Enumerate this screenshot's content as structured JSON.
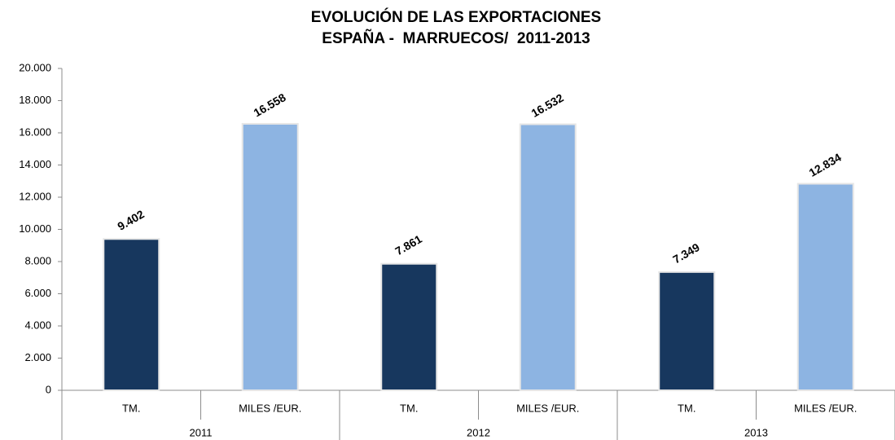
{
  "chart_data": {
    "type": "bar",
    "title": "EVOLUCIÓN DE LAS EXPORTACIONES",
    "subtitle": "ESPAÑA -  MARRUECOS/  2011-2013",
    "categories": [
      "TM.",
      "MILES /EUR.",
      "TM.",
      "MILES /EUR.",
      "TM.",
      "MILES /EUR."
    ],
    "groups": [
      "2011",
      "2012",
      "2013"
    ],
    "values": [
      9402,
      16558,
      7861,
      16532,
      7349,
      12834
    ],
    "value_labels": [
      "9.402",
      "16.558",
      "7.861",
      "16.532",
      "7.349",
      "12.834"
    ],
    "colors": [
      "#17375e",
      "#8db4e2",
      "#17375e",
      "#8db4e2",
      "#17375e",
      "#8db4e2"
    ],
    "ylim": [
      0,
      20000
    ],
    "yticks": [
      0,
      {
        "value": 2000,
        "label": "2.000"
      },
      {
        "value": 4000,
        "label": "4.000"
      },
      {
        "value": 6000,
        "label": "6.000"
      },
      {
        "value": 8000,
        "label": "8.000"
      },
      {
        "value": 10000,
        "label": "10.000"
      },
      {
        "value": 12000,
        "label": "12.000"
      },
      {
        "value": 14000,
        "label": "14.000"
      },
      {
        "value": 16000,
        "label": "16.000"
      },
      {
        "value": 18000,
        "label": "18.000"
      },
      {
        "value": 20000,
        "label": "20.000"
      }
    ],
    "grid": false
  }
}
